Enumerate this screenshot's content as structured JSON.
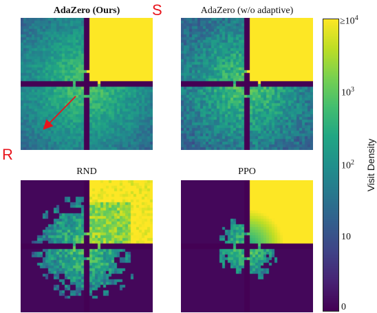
{
  "chart_data": {
    "type": "heatmap",
    "colormap": "viridis",
    "panels": [
      {
        "id": "adazero",
        "title": "AdaZero (Ours)",
        "bold": true,
        "spread": 1.0,
        "quadrant_fill": 1.0,
        "noise": 0.15,
        "coverage": 1.0,
        "arrow": true
      },
      {
        "id": "adazero-wo",
        "title": "AdaZero (w/o adaptive)",
        "bold": false,
        "spread": 0.85,
        "quadrant_fill": 1.0,
        "noise": 0.22,
        "coverage": 1.0,
        "arrow": false
      },
      {
        "id": "rnd",
        "title": "RND",
        "bold": false,
        "spread": 0.55,
        "quadrant_fill": 0.62,
        "noise": 0.3,
        "coverage": 0.62,
        "arrow": false
      },
      {
        "id": "ppo",
        "title": "PPO",
        "bold": false,
        "spread": 0.35,
        "quadrant_fill": 0.8,
        "noise": 0.25,
        "coverage": 0.38,
        "arrow": false
      }
    ],
    "markers": {
      "start": "S",
      "reward": "R"
    },
    "colorbar": {
      "label": "Visit Density",
      "ticks": [
        "0",
        "10",
        "10",
        "10",
        "≥10"
      ],
      "tick_exponents": [
        "",
        "",
        "2",
        "3",
        "4"
      ],
      "tick_values": [
        0,
        10,
        100,
        1000,
        10000
      ]
    }
  }
}
